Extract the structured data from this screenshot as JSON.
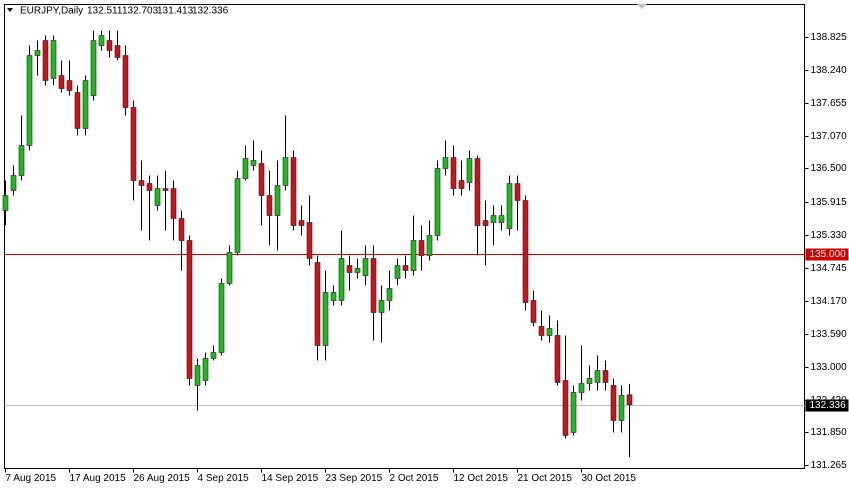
{
  "chart_data": {
    "type": "candlestick",
    "symbol": "EURJPY,Daily",
    "categories": [
      "7 Aug 2015",
      null,
      null,
      null,
      null,
      null,
      null,
      null,
      "17 Aug 2015",
      null,
      null,
      null,
      null,
      null,
      null,
      null,
      "26 Aug 2015",
      null,
      null,
      null,
      null,
      null,
      null,
      null,
      "4 Sep 2015",
      null,
      null,
      null,
      null,
      null,
      null,
      null,
      "14 Sep 2015",
      null,
      null,
      null,
      null,
      null,
      null,
      null,
      "23 Sep 2015",
      null,
      null,
      null,
      null,
      null,
      null,
      null,
      "2 Oct 2015",
      null,
      null,
      null,
      null,
      null,
      null,
      null,
      "12 Oct 2015",
      null,
      null,
      null,
      null,
      null,
      null,
      null,
      "21 Oct 2015",
      null,
      null,
      null,
      null,
      null,
      null,
      null,
      "30 Oct 2015",
      null,
      null,
      null,
      null,
      null,
      null
    ],
    "open": [
      135.759,
      136.111,
      136.375,
      136.904,
      138.49,
      138.754,
      138.085,
      138.137,
      138.049,
      137.838,
      137.204,
      137.785,
      138.666,
      138.754,
      138.666,
      138.49,
      137.574,
      136.287,
      136.234,
      135.847,
      136.146,
      136.146,
      135.618,
      135.23,
      132.675,
      132.763,
      133.151,
      133.256,
      134.472,
      135.019,
      136.322,
      136.552,
      136.587,
      136.023,
      135.67,
      136.199,
      136.692,
      135.582,
      135.547,
      134.842,
      133.38,
      134.173,
      134.173,
      134.789,
      134.666,
      134.613,
      134.913,
      133.961,
      134.173,
      134.56,
      134.789,
      134.701,
      135.23,
      134.965,
      135.318,
      136.499,
      136.692,
      136.287,
      136.252,
      136.675,
      135.582,
      135.547,
      135.547,
      135.441,
      136.234,
      135.935,
      134.173,
      133.715,
      133.556,
      133.556,
      132.763,
      131.847,
      132.552,
      132.71,
      132.728,
      132.939,
      132.675,
      132.058,
      132.511
    ],
    "high": [
      136.287,
      136.552,
      137.433,
      138.666,
      138.754,
      138.842,
      138.842,
      138.402,
      138.402,
      137.961,
      138.137,
      138.93,
      138.93,
      138.93,
      138.93,
      138.666,
      137.697,
      136.64,
      136.375,
      136.375,
      136.463,
      136.287,
      135.759,
      135.318,
      133.151,
      133.256,
      133.38,
      134.56,
      135.142,
      136.463,
      136.904,
      136.992,
      136.816,
      136.463,
      136.64,
      137.433,
      136.816,
      135.847,
      136.023,
      134.965,
      134.701,
      134.437,
      135.406,
      134.965,
      134.913,
      135.142,
      135.142,
      134.437,
      134.701,
      134.913,
      134.965,
      135.67,
      135.494,
      135.582,
      136.64,
      136.992,
      136.904,
      136.64,
      136.816,
      136.728,
      135.935,
      135.847,
      135.847,
      136.375,
      136.375,
      136.023,
      134.349,
      133.996,
      133.908,
      133.82,
      133.556,
      132.675,
      133.38,
      133.027,
      133.204,
      133.115,
      132.798,
      132.675,
      132.703
    ],
    "low": [
      135.494,
      136.023,
      136.287,
      136.816,
      138.137,
      137.961,
      137.961,
      137.838,
      137.785,
      137.08,
      137.08,
      137.697,
      138.578,
      138.455,
      138.402,
      137.433,
      135.935,
      135.406,
      135.23,
      135.759,
      135.406,
      135.23,
      134.701,
      132.675,
      132.234,
      132.675,
      133.115,
      133.204,
      134.437,
      134.965,
      136.287,
      136.463,
      135.494,
      135.142,
      135.054,
      136.111,
      135.406,
      135.318,
      134.789,
      133.115,
      133.115,
      134.085,
      134.085,
      134.349,
      134.56,
      134.437,
      133.468,
      133.433,
      133.996,
      134.437,
      134.56,
      134.613,
      134.701,
      134.878,
      135.23,
      136.375,
      136.023,
      136.023,
      136.111,
      134.965,
      134.789,
      135.142,
      135.406,
      135.318,
      135.406,
      133.996,
      133.715,
      133.468,
      133.433,
      132.675,
      131.741,
      131.794,
      132.411,
      132.587,
      132.587,
      132.587,
      131.847,
      131.847,
      131.413
    ],
    "close": [
      136.023,
      136.375,
      136.904,
      138.49,
      138.578,
      138.049,
      138.754,
      137.908,
      137.873,
      137.204,
      138.049,
      138.754,
      138.842,
      138.578,
      138.455,
      137.574,
      136.287,
      136.199,
      136.111,
      136.146,
      136.111,
      135.618,
      135.23,
      132.798,
      133.027,
      133.151,
      133.256,
      134.472,
      135.019,
      136.322,
      136.675,
      136.64,
      136.023,
      135.67,
      136.199,
      136.692,
      135.494,
      135.494,
      134.913,
      133.38,
      134.314,
      134.314,
      134.913,
      134.666,
      134.737,
      134.913,
      133.961,
      134.173,
      134.384,
      134.789,
      134.701,
      135.23,
      134.965,
      135.318,
      136.499,
      136.692,
      136.146,
      136.146,
      136.675,
      135.494,
      135.494,
      135.67,
      135.67,
      136.234,
      135.935,
      134.137,
      133.785,
      133.556,
      133.679,
      132.728,
      131.794,
      132.552,
      132.71,
      132.798,
      132.939,
      132.728,
      132.058,
      132.499,
      132.336
    ],
    "up_color": "#22b822",
    "down_color": "#c8141b",
    "wick_color": "#000000",
    "ylim": [
      131.212,
      139.389
    ],
    "yticks": [
      138.825,
      {
        "value": 138.24,
        "label": "138.240"
      },
      137.655,
      {
        "value": 137.07,
        "label": "137.070"
      },
      {
        "value": 136.5,
        "label": "136.500"
      },
      135.915,
      {
        "value": 135.33,
        "label": "135.330"
      },
      134.745,
      {
        "value": 134.17,
        "label": "134.170"
      },
      {
        "value": 133.59,
        "label": "133.590"
      },
      {
        "value": 133,
        "label": "133.000"
      },
      {
        "value": 132.42,
        "label": "132.420"
      },
      {
        "value": 131.85,
        "label": "131.850"
      },
      131.265
    ],
    "price_line": {
      "value": 135,
      "label": "135.000",
      "color": "#d40000"
    },
    "bid_line_color": "#c0c0c0"
  }
}
